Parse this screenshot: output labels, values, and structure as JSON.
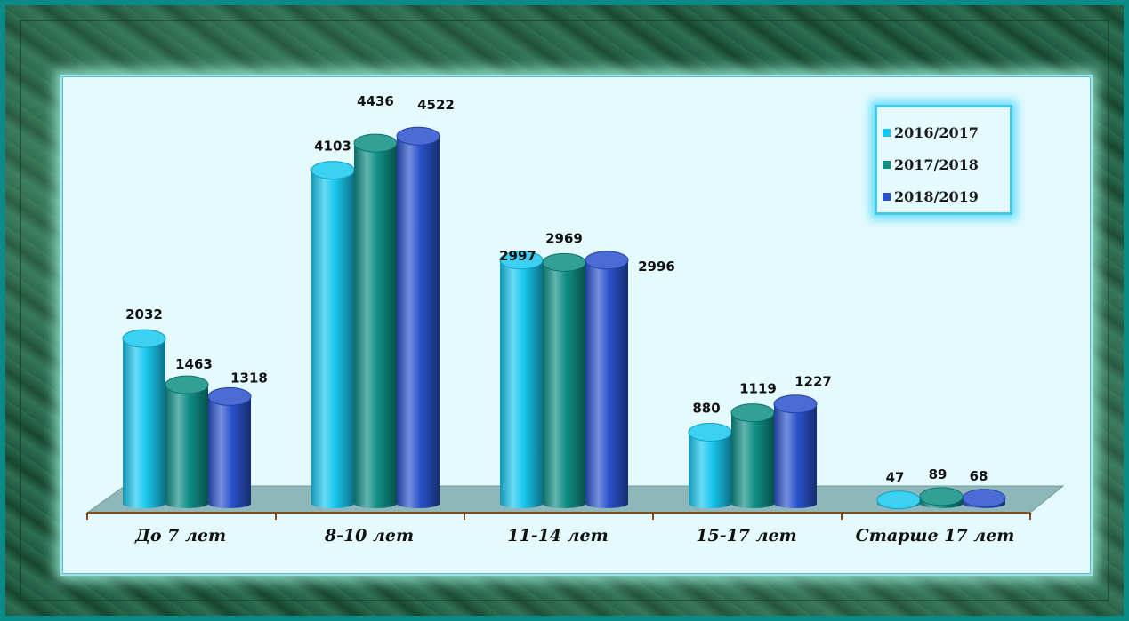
{
  "chart_data": {
    "type": "bar",
    "categories": [
      "До 7 лет",
      "8-10 лет",
      "11-14 лет",
      "15-17 лет",
      "Старше 17 лет"
    ],
    "series": [
      {
        "name": "2016/2017",
        "color": "#19c8f0",
        "values": [
          2032,
          4103,
          2997,
          880,
          47
        ]
      },
      {
        "name": "2017/2018",
        "color": "#0f8f86",
        "values": [
          1463,
          4436,
          2969,
          1119,
          89
        ]
      },
      {
        "name": "2018/2019",
        "color": "#2a52cc",
        "values": [
          1318,
          4522,
          2996,
          1227,
          68
        ]
      }
    ],
    "ylim": [
      0,
      4800
    ],
    "legend": "top-right",
    "grid": false
  }
}
